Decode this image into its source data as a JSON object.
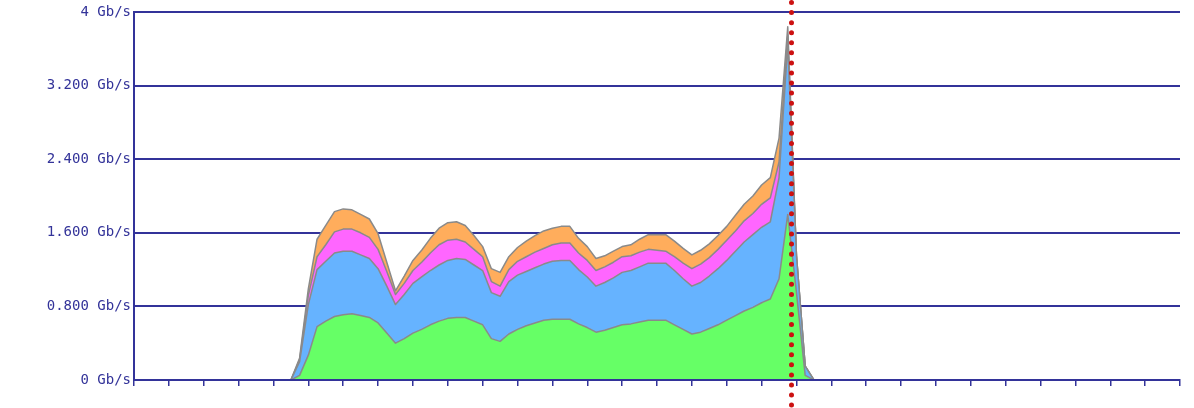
{
  "chart_data": {
    "type": "area",
    "stacked": true,
    "categories": [
      null,
      null,
      null,
      null,
      null,
      null,
      null,
      null,
      null,
      null,
      null,
      null,
      null,
      null,
      null,
      null,
      null,
      null,
      null,
      null,
      null,
      null,
      null,
      null,
      null,
      null,
      null,
      null,
      null,
      null,
      null,
      null,
      null,
      null,
      null,
      null,
      null,
      null,
      null,
      null,
      null,
      null,
      null,
      null,
      null,
      null,
      null,
      null,
      null,
      null,
      null,
      null,
      null,
      null,
      null,
      null,
      null,
      null,
      null,
      null,
      null,
      null,
      null,
      null,
      null,
      null,
      null,
      null,
      null,
      null,
      null,
      null,
      null,
      null,
      null,
      null,
      null,
      null,
      null,
      null,
      null,
      null,
      null,
      null,
      null,
      null,
      null,
      null,
      null,
      null,
      null,
      null,
      null,
      null,
      null,
      null,
      null,
      null,
      null,
      null,
      null,
      null,
      null,
      null,
      null,
      null,
      null,
      null,
      null,
      null,
      null,
      null,
      null,
      null,
      null,
      null,
      null,
      null,
      null,
      null,
      null
    ],
    "series": [
      {
        "color": "#66ff66",
        "values": [
          0,
          0,
          0,
          0,
          0,
          0,
          0,
          0,
          0,
          0,
          0,
          0,
          0,
          0,
          0,
          0,
          0,
          0,
          0,
          0.05,
          0.27,
          0.58,
          0.64,
          0.69,
          0.71,
          0.72,
          0.7,
          0.68,
          0.62,
          0.51,
          0.4,
          0.45,
          0.51,
          0.55,
          0.6,
          0.64,
          0.67,
          0.68,
          0.68,
          0.64,
          0.6,
          0.45,
          0.42,
          0.5,
          0.55,
          0.59,
          0.62,
          0.65,
          0.66,
          0.66,
          0.66,
          0.61,
          0.57,
          0.52,
          0.54,
          0.57,
          0.6,
          0.61,
          0.63,
          0.65,
          0.65,
          0.65,
          0.6,
          0.55,
          0.5,
          0.52,
          0.56,
          0.6,
          0.65,
          0.7,
          0.75,
          0.79,
          0.84,
          0.88,
          1.1,
          1.8,
          0.95,
          0.05,
          0,
          0,
          0,
          0,
          0,
          0,
          0,
          0,
          0,
          0,
          0,
          0,
          0,
          0,
          0,
          0,
          0,
          0,
          0,
          0,
          0,
          0,
          0,
          0,
          0,
          0,
          0,
          0,
          0,
          0,
          0,
          0,
          0,
          0,
          0,
          0,
          0,
          0,
          0,
          0,
          0,
          0,
          0
        ]
      },
      {
        "color": "#66b3ff",
        "values": [
          0,
          0,
          0,
          0,
          0,
          0,
          0,
          0,
          0,
          0,
          0,
          0,
          0,
          0,
          0,
          0,
          0,
          0,
          0,
          0.15,
          0.55,
          0.62,
          0.65,
          0.69,
          0.69,
          0.68,
          0.66,
          0.64,
          0.59,
          0.51,
          0.42,
          0.48,
          0.54,
          0.57,
          0.59,
          0.61,
          0.63,
          0.64,
          0.63,
          0.61,
          0.59,
          0.5,
          0.49,
          0.57,
          0.59,
          0.59,
          0.6,
          0.61,
          0.63,
          0.64,
          0.64,
          0.59,
          0.55,
          0.5,
          0.52,
          0.54,
          0.57,
          0.58,
          0.6,
          0.62,
          0.62,
          0.62,
          0.59,
          0.55,
          0.52,
          0.54,
          0.57,
          0.61,
          0.65,
          0.7,
          0.75,
          0.79,
          0.82,
          0.84,
          1.1,
          1.85,
          0.4,
          0.1,
          0,
          0,
          0,
          0,
          0,
          0,
          0,
          0,
          0,
          0,
          0,
          0,
          0,
          0,
          0,
          0,
          0,
          0,
          0,
          0,
          0,
          0,
          0,
          0,
          0,
          0,
          0,
          0,
          0,
          0,
          0,
          0,
          0,
          0,
          0,
          0,
          0,
          0,
          0,
          0,
          0,
          0,
          0
        ]
      },
      {
        "color": "#ff66ff",
        "values": [
          0,
          0,
          0,
          0,
          0,
          0,
          0,
          0,
          0,
          0,
          0,
          0,
          0,
          0,
          0,
          0,
          0,
          0,
          0,
          0.02,
          0.1,
          0.14,
          0.18,
          0.23,
          0.24,
          0.24,
          0.24,
          0.23,
          0.21,
          0.16,
          0.11,
          0.12,
          0.14,
          0.16,
          0.19,
          0.22,
          0.22,
          0.21,
          0.19,
          0.17,
          0.15,
          0.12,
          0.11,
          0.13,
          0.15,
          0.16,
          0.17,
          0.17,
          0.18,
          0.19,
          0.19,
          0.18,
          0.18,
          0.17,
          0.17,
          0.17,
          0.17,
          0.16,
          0.16,
          0.15,
          0.14,
          0.13,
          0.15,
          0.17,
          0.19,
          0.2,
          0.2,
          0.21,
          0.22,
          0.22,
          0.23,
          0.23,
          0.25,
          0.26,
          0.17,
          0.1,
          0,
          0,
          0,
          0,
          0,
          0,
          0,
          0,
          0,
          0,
          0,
          0,
          0,
          0,
          0,
          0,
          0,
          0,
          0,
          0,
          0,
          0,
          0,
          0,
          0,
          0,
          0,
          0,
          0,
          0,
          0,
          0,
          0,
          0,
          0,
          0,
          0,
          0,
          0,
          0,
          0,
          0,
          0,
          0,
          0
        ]
      },
      {
        "color": "#ffad5c",
        "values": [
          0,
          0,
          0,
          0,
          0,
          0,
          0,
          0,
          0,
          0,
          0,
          0,
          0,
          0,
          0,
          0,
          0,
          0,
          0,
          0.02,
          0.07,
          0.19,
          0.21,
          0.22,
          0.22,
          0.21,
          0.2,
          0.2,
          0.17,
          0.1,
          0.04,
          0.08,
          0.11,
          0.13,
          0.16,
          0.18,
          0.19,
          0.19,
          0.18,
          0.15,
          0.11,
          0.14,
          0.15,
          0.14,
          0.15,
          0.17,
          0.18,
          0.19,
          0.18,
          0.18,
          0.18,
          0.16,
          0.15,
          0.13,
          0.12,
          0.12,
          0.11,
          0.12,
          0.14,
          0.16,
          0.17,
          0.18,
          0.17,
          0.16,
          0.15,
          0.15,
          0.15,
          0.15,
          0.15,
          0.17,
          0.18,
          0.19,
          0.21,
          0.22,
          0.26,
          0.09,
          0,
          0,
          0,
          0,
          0,
          0,
          0,
          0,
          0,
          0,
          0,
          0,
          0,
          0,
          0,
          0,
          0,
          0,
          0,
          0,
          0,
          0,
          0,
          0,
          0,
          0,
          0,
          0,
          0,
          0,
          0,
          0,
          0,
          0,
          0,
          0,
          0,
          0,
          0,
          0,
          0,
          0,
          0,
          0,
          0
        ]
      }
    ],
    "ylim": [
      0,
      4
    ],
    "yticks": [
      {
        "value": 0,
        "label": "0 Gb/s"
      },
      {
        "value": 0.8,
        "label": "0.800 Gb/s"
      },
      {
        "value": 1.6,
        "label": "1.600 Gb/s"
      },
      {
        "value": 2.4,
        "label": "2.400 Gb/s"
      },
      {
        "value": 3.2,
        "label": "3.200 Gb/s"
      },
      {
        "value": 4,
        "label": "4 Gb/s"
      }
    ],
    "grid": "y",
    "tick_labels": "y",
    "marker": "none",
    "legend": false
  }
}
